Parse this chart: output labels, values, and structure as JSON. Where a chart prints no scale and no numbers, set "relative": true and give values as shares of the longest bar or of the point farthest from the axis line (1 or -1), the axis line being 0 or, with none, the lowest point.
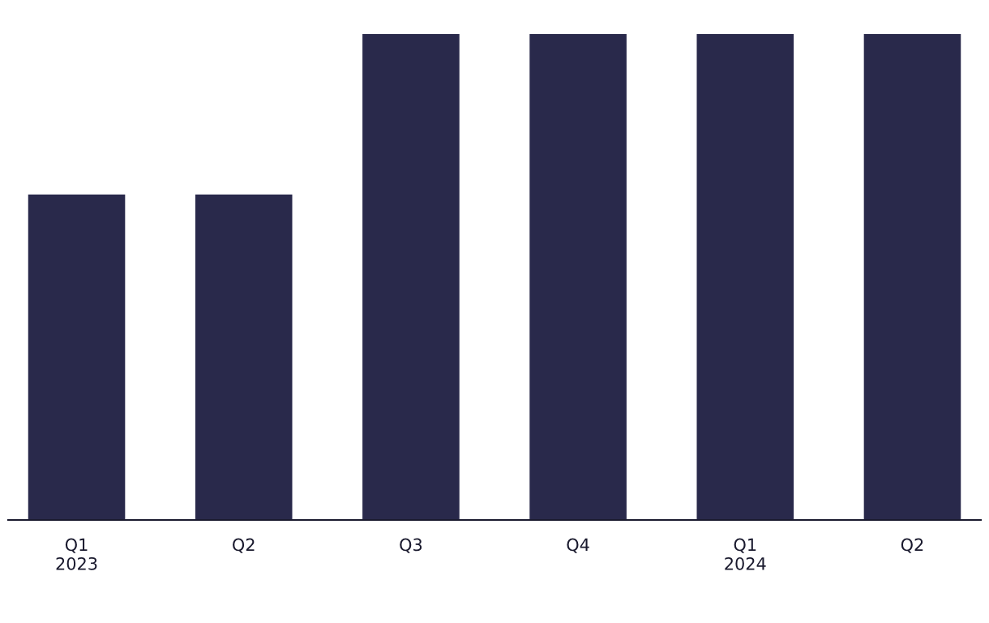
{
  "chart_data": {
    "type": "bar",
    "relative": true,
    "categories": [
      "Q1\n2023",
      "Q2",
      "Q3",
      "Q4",
      "Q1\n2024",
      "Q2"
    ],
    "values": [
      0.67,
      0.67,
      1,
      1,
      1,
      1
    ],
    "color": "#29294b",
    "grid": false,
    "legend": false
  }
}
